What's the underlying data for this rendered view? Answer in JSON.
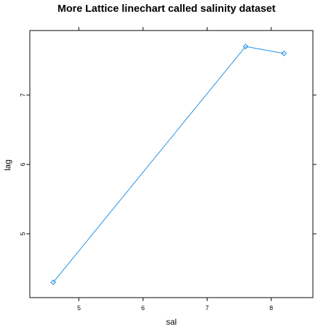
{
  "chart_data": {
    "type": "line",
    "title": "More Lattice linechart called salinity dataset",
    "xlabel": "sal",
    "ylabel": "lag",
    "xlim": [
      4.235,
      8.65
    ],
    "ylim": [
      4.08,
      7.93
    ],
    "x_ticks": [
      "5",
      "6",
      "7",
      "8"
    ],
    "y_ticks": [
      "5",
      "6",
      "7"
    ],
    "grid": false,
    "marker": "diamond",
    "series": [
      {
        "x": [
          4.6,
          7.6,
          8.2
        ],
        "y": [
          4.3,
          7.7,
          7.6
        ],
        "color": "#1f90e6"
      }
    ]
  }
}
